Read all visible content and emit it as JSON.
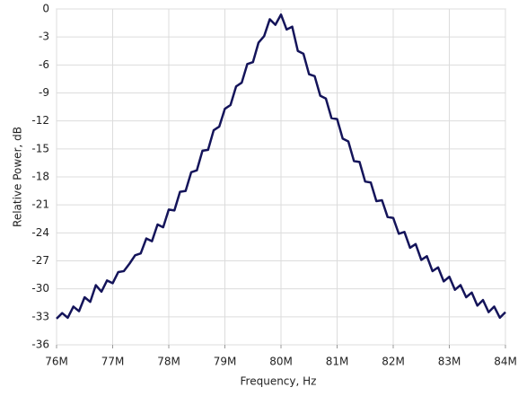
{
  "chart_data": {
    "type": "line",
    "xlabel": "Frequency, Hz",
    "ylabel": "Relative Power, dB",
    "x": [
      76000000,
      76100000,
      76200000,
      76300000,
      76400000,
      76500000,
      76600000,
      76700000,
      76800000,
      76900000,
      77000000,
      77100000,
      77200000,
      77300000,
      77400000,
      77500000,
      77600000,
      77700000,
      77800000,
      77900000,
      78000000,
      78100000,
      78200000,
      78300000,
      78400000,
      78500000,
      78600000,
      78700000,
      78800000,
      78900000,
      79000000,
      79100000,
      79200000,
      79300000,
      79400000,
      79500000,
      79600000,
      79700000,
      79800000,
      79900000,
      80000000,
      80100000,
      80200000,
      80300000,
      80400000,
      80500000,
      80600000,
      80700000,
      80800000,
      80900000,
      81000000,
      81100000,
      81200000,
      81300000,
      81400000,
      81500000,
      81600000,
      81700000,
      81800000,
      81900000,
      82000000,
      82100000,
      82200000,
      82300000,
      82400000,
      82500000,
      82600000,
      82700000,
      82800000,
      82900000,
      83000000,
      83100000,
      83200000,
      83300000,
      83400000,
      83500000,
      83600000,
      83700000,
      83800000,
      83900000,
      84000000
    ],
    "series": [
      {
        "color": "#14145a",
        "values": [
          -33.2,
          -32.6,
          -33.1,
          -31.9,
          -32.4,
          -30.9,
          -31.4,
          -29.6,
          -30.3,
          -29.1,
          -29.4,
          -28.2,
          -28.1,
          -27.3,
          -26.4,
          -26.2,
          -24.6,
          -24.9,
          -23.1,
          -23.4,
          -21.5,
          -21.6,
          -19.6,
          -19.5,
          -17.5,
          -17.3,
          -15.2,
          -15.1,
          -13.0,
          -12.6,
          -10.7,
          -10.3,
          -8.3,
          -7.9,
          -5.9,
          -5.7,
          -3.6,
          -2.9,
          -1.1,
          -1.7,
          -0.6,
          -2.2,
          -1.9,
          -4.5,
          -4.8,
          -7.0,
          -7.2,
          -9.3,
          -9.6,
          -11.7,
          -11.8,
          -13.9,
          -14.2,
          -16.3,
          -16.4,
          -18.5,
          -18.6,
          -20.6,
          -20.5,
          -22.3,
          -22.4,
          -24.1,
          -23.9,
          -25.6,
          -25.2,
          -26.9,
          -26.5,
          -28.1,
          -27.7,
          -29.2,
          -28.7,
          -30.1,
          -29.6,
          -30.9,
          -30.4,
          -31.8,
          -31.2,
          -32.5,
          -31.9,
          -33.1,
          -32.5
        ]
      }
    ],
    "xlim": [
      76000000,
      84000000
    ],
    "xticks": [
      {
        "value": 76000000,
        "label": "76M"
      },
      {
        "value": 77000000,
        "label": "77M"
      },
      {
        "value": 78000000,
        "label": "78M"
      },
      {
        "value": 79000000,
        "label": "79M"
      },
      {
        "value": 80000000,
        "label": "80M"
      },
      {
        "value": 81000000,
        "label": "81M"
      },
      {
        "value": 82000000,
        "label": "82M"
      },
      {
        "value": 83000000,
        "label": "83M"
      },
      {
        "value": 84000000,
        "label": "84M"
      }
    ],
    "ylim": [
      -36,
      0
    ],
    "yticks": [
      0,
      -3,
      -6,
      -9,
      -12,
      -15,
      -18,
      -21,
      -24,
      -27,
      -30,
      -33,
      -36
    ],
    "grid": true
  }
}
